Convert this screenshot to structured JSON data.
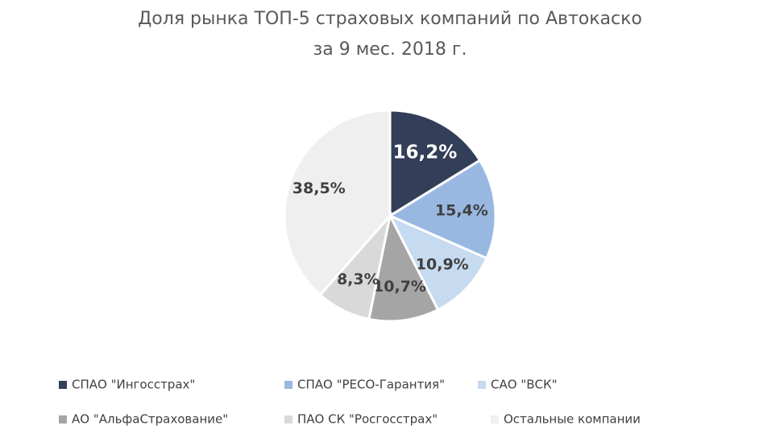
{
  "chart_data": {
    "type": "pie",
    "title": [
      "Доля рынка ТОП-5 страховых компаний по Автокаско",
      "за 9 мес. 2018 г."
    ],
    "categories": [
      "СПАО \"Ингосстрах\"",
      "СПАО \"РЕСО-Гарантия\"",
      "САО \"ВСК\"",
      "АО \"АльфаСтрахование\"",
      "ПАО СК \"Росгосстрах\"",
      "Остальные компании"
    ],
    "values": [
      16.2,
      15.4,
      10.9,
      10.7,
      8.3,
      38.5
    ],
    "value_labels": [
      "16,2%",
      "15,4%",
      "10,9%",
      "10,7%",
      "8,3%",
      "38,5%"
    ],
    "colors": [
      "#333f58",
      "#98b8e1",
      "#c6daf0",
      "#a5a5a5",
      "#d9d9d9",
      "#efefef"
    ],
    "legend": "bottom"
  }
}
